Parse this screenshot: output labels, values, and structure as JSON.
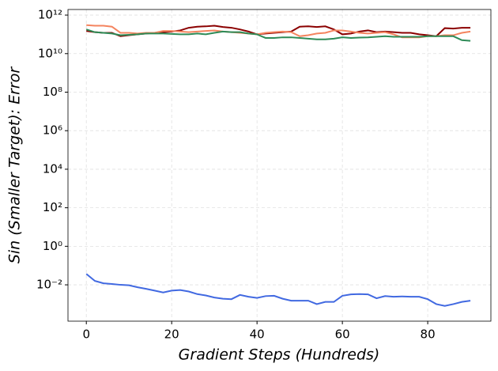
{
  "chart_data": {
    "type": "line",
    "xlabel": "Gradient Steps (Hundreds)",
    "ylabel": "Sin (Smaller Target): Error",
    "log_y": true,
    "grid": true,
    "x": [
      0,
      2,
      4,
      6,
      8,
      10,
      12,
      14,
      16,
      18,
      20,
      22,
      24,
      26,
      28,
      30,
      32,
      34,
      36,
      38,
      40,
      42,
      44,
      46,
      48,
      50,
      52,
      54,
      56,
      58,
      60,
      62,
      64,
      66,
      68,
      70,
      72,
      74,
      76,
      78,
      80,
      82,
      84,
      86,
      88,
      90
    ],
    "xlim": [
      -4.3,
      94.8
    ],
    "xticks": [
      0,
      20,
      40,
      60,
      80
    ],
    "ylim": [
      0.00013,
      1950000000000.0
    ],
    "yticks": [
      {
        "value": 0.01,
        "label": "10⁻²"
      },
      {
        "value": 1,
        "label": "10⁰"
      },
      {
        "value": 100,
        "label": "10²"
      },
      {
        "value": 10000,
        "label": "10⁴"
      },
      {
        "value": 1000000,
        "label": "10⁶"
      },
      {
        "value": 100000000,
        "label": "10⁸"
      },
      {
        "value": 10000000000,
        "label": "10¹⁰"
      },
      {
        "value": 1000000000000,
        "label": "10¹²"
      }
    ],
    "series": [
      {
        "color": "#8b0000",
        "values": [
          150000000000.0,
          130000000000.0,
          120000000000.0,
          120000000000.0,
          80000000000.0,
          90000000000.0,
          100000000000.0,
          110000000000.0,
          120000000000.0,
          130000000000.0,
          140000000000.0,
          160000000000.0,
          220000000000.0,
          250000000000.0,
          260000000000.0,
          280000000000.0,
          240000000000.0,
          220000000000.0,
          180000000000.0,
          140000000000.0,
          100000000000.0,
          110000000000.0,
          120000000000.0,
          130000000000.0,
          140000000000.0,
          250000000000.0,
          260000000000.0,
          240000000000.0,
          260000000000.0,
          180000000000.0,
          100000000000.0,
          110000000000.0,
          140000000000.0,
          160000000000.0,
          130000000000.0,
          140000000000.0,
          130000000000.0,
          120000000000.0,
          120000000000.0,
          100000000000.0,
          90000000000.0,
          80000000000.0,
          210000000000.0,
          200000000000.0,
          220000000000.0,
          220000000000.0
        ]
      },
      {
        "color": "#f4845f",
        "values": [
          300000000000.0,
          280000000000.0,
          280000000000.0,
          250000000000.0,
          120000000000.0,
          120000000000.0,
          110000000000.0,
          120000000000.0,
          120000000000.0,
          150000000000.0,
          150000000000.0,
          140000000000.0,
          130000000000.0,
          140000000000.0,
          150000000000.0,
          160000000000.0,
          140000000000.0,
          130000000000.0,
          120000000000.0,
          110000000000.0,
          100000000000.0,
          120000000000.0,
          130000000000.0,
          140000000000.0,
          130000000000.0,
          80000000000.0,
          90000000000.0,
          110000000000.0,
          120000000000.0,
          160000000000.0,
          160000000000.0,
          140000000000.0,
          120000000000.0,
          110000000000.0,
          120000000000.0,
          130000000000.0,
          100000000000.0,
          70000000000.0,
          70000000000.0,
          70000000000.0,
          80000000000.0,
          80000000000.0,
          90000000000.0,
          90000000000.0,
          120000000000.0,
          140000000000.0
        ]
      },
      {
        "color": "#2e8b57",
        "values": [
          180000000000.0,
          130000000000.0,
          120000000000.0,
          110000000000.0,
          90000000000.0,
          95000000000.0,
          100000000000.0,
          110000000000.0,
          110000000000.0,
          110000000000.0,
          105000000000.0,
          100000000000.0,
          100000000000.0,
          110000000000.0,
          100000000000.0,
          120000000000.0,
          140000000000.0,
          130000000000.0,
          130000000000.0,
          110000000000.0,
          100000000000.0,
          65000000000.0,
          65000000000.0,
          70000000000.0,
          70000000000.0,
          65000000000.0,
          60000000000.0,
          55000000000.0,
          55000000000.0,
          60000000000.0,
          70000000000.0,
          65000000000.0,
          68000000000.0,
          70000000000.0,
          75000000000.0,
          80000000000.0,
          75000000000.0,
          75000000000.0,
          75000000000.0,
          75000000000.0,
          80000000000.0,
          80000000000.0,
          80000000000.0,
          80000000000.0,
          50000000000.0,
          46000000000.0
        ]
      },
      {
        "color": "#4169e1",
        "values": [
          0.037,
          0.016,
          0.012,
          0.011,
          0.01,
          0.0095,
          0.0075,
          0.0062,
          0.005,
          0.004,
          0.005,
          0.0054,
          0.0045,
          0.0033,
          0.0028,
          0.0022,
          0.0019,
          0.0018,
          0.003,
          0.0024,
          0.0021,
          0.0026,
          0.0027,
          0.0019,
          0.0015,
          0.0015,
          0.0015,
          0.001,
          0.0013,
          0.0013,
          0.0027,
          0.0032,
          0.0033,
          0.0032,
          0.002,
          0.0026,
          0.0024,
          0.0025,
          0.0024,
          0.0024,
          0.0018,
          0.001,
          0.0008,
          0.001,
          0.0013,
          0.0015
        ]
      }
    ]
  }
}
